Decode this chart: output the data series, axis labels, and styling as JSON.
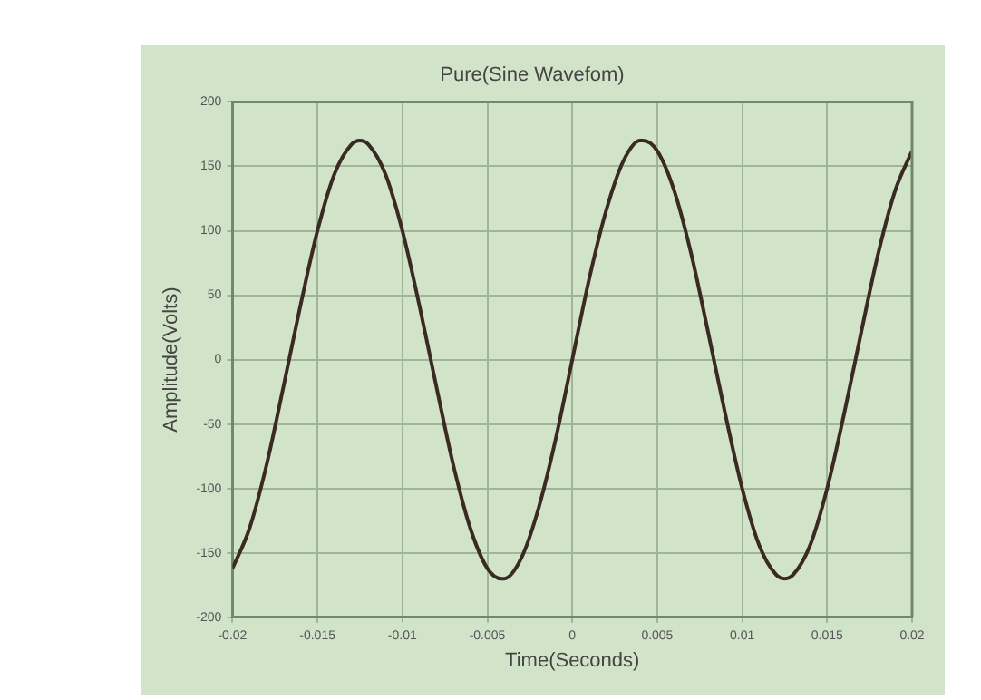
{
  "chart_data": {
    "type": "line",
    "title": "Pure(Sine Wavefom)",
    "xlabel": "Time(Seconds)",
    "ylabel": "Amplitude(Volts)",
    "x": [
      -0.02,
      -0.019,
      -0.018,
      -0.017,
      -0.016,
      -0.015,
      -0.014,
      -0.013,
      -0.0125,
      -0.012,
      -0.011,
      -0.01,
      -0.009,
      -0.008,
      -0.007,
      -0.006,
      -0.005,
      -0.00417,
      -0.004,
      -0.003,
      -0.002,
      -0.001,
      0,
      0.001,
      0.002,
      0.003,
      0.004,
      0.00417,
      0.005,
      0.006,
      0.007,
      0.008,
      0.009,
      0.01,
      0.011,
      0.012,
      0.0125,
      0.013,
      0.014,
      0.015,
      0.016,
      0.017,
      0.018,
      0.019,
      0.02
    ],
    "series": [
      {
        "color": "#3b2a24",
        "values": [
          -162,
          -131,
          -82,
          -21,
          42,
          100,
          144,
          167,
          170,
          167,
          144,
          100,
          42,
          -21,
          -82,
          -131,
          -162,
          -170,
          -170,
          -154,
          -116,
          -63,
          0,
          63,
          116,
          154,
          170,
          170,
          162,
          131,
          82,
          21,
          -42,
          -100,
          -144,
          -167,
          -170,
          -167,
          -144,
          -100,
          -42,
          21,
          82,
          131,
          162
        ]
      }
    ],
    "xlim": [
      -0.02,
      0.02
    ],
    "xticks": [
      -0.02,
      -0.015,
      -0.01,
      -0.005,
      0,
      0.005,
      0.01,
      0.015,
      0.02
    ],
    "ylim": [
      -200,
      200
    ],
    "yticks": [
      -200,
      -150,
      -100,
      -50,
      0,
      50,
      100,
      150,
      200
    ],
    "grid": true,
    "legend": false,
    "marker": "none",
    "line_style": "solid"
  }
}
